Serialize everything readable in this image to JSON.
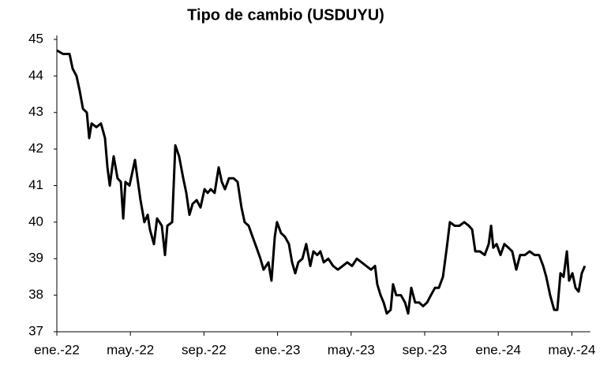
{
  "chart_data": {
    "type": "line",
    "title": "Tipo de cambio (USDUYU)",
    "x": [
      0,
      0.34,
      0.69,
      0.86,
      1.07,
      1.24,
      1.42,
      1.63,
      1.76,
      1.89,
      2.15,
      2.4,
      2.62,
      2.75,
      2.88,
      3.09,
      3.3,
      3.48,
      3.61,
      3.73,
      3.95,
      4.25,
      4.38,
      4.55,
      4.76,
      4.94,
      5.06,
      5.28,
      5.45,
      5.71,
      5.88,
      6.01,
      6.27,
      6.44,
      6.65,
      6.87,
      7.04,
      7.21,
      7.38,
      7.6,
      7.81,
      8.03,
      8.2,
      8.37,
      8.58,
      8.8,
      8.97,
      9.14,
      9.36,
      9.61,
      9.83,
      10.04,
      10.21,
      10.43,
      10.64,
      10.86,
      11.07,
      11.24,
      11.5,
      11.67,
      11.85,
      11.97,
      12.19,
      12.4,
      12.62,
      12.79,
      12.96,
      13.13,
      13.35,
      13.56,
      13.78,
      13.95,
      14.16,
      14.33,
      14.51,
      14.76,
      15.02,
      15.28,
      15.54,
      15.79,
      16.05,
      16.31,
      16.57,
      16.82,
      17.08,
      17.3,
      17.42,
      17.6,
      17.77,
      17.94,
      18.15,
      18.28,
      18.45,
      18.71,
      18.93,
      19.1,
      19.27,
      19.48,
      19.7,
      19.91,
      20.13,
      20.34,
      20.56,
      20.77,
      20.99,
      21.2,
      21.37,
      21.63,
      21.89,
      22.15,
      22.4,
      22.58,
      22.75,
      23,
      23.26,
      23.48,
      23.61,
      23.73,
      23.91,
      24.12,
      24.33,
      24.55,
      24.76,
      24.98,
      25.19,
      25.45,
      25.71,
      25.97,
      26.22,
      26.44,
      26.61,
      26.82,
      27.04,
      27.21,
      27.38,
      27.55,
      27.73,
      27.85,
      28.03,
      28.2,
      28.37,
      28.54,
      28.71
    ],
    "values": [
      44.7,
      44.6,
      44.6,
      44.2,
      44.0,
      43.6,
      43.1,
      43.0,
      42.3,
      42.7,
      42.6,
      42.7,
      42.3,
      41.5,
      41.0,
      41.8,
      41.2,
      41.1,
      40.1,
      41.1,
      41.0,
      41.7,
      41.2,
      40.6,
      40.0,
      40.2,
      39.8,
      39.4,
      40.1,
      39.9,
      39.1,
      39.9,
      40.0,
      42.1,
      41.8,
      41.2,
      40.8,
      40.2,
      40.5,
      40.6,
      40.4,
      40.9,
      40.8,
      40.9,
      40.8,
      41.5,
      41.1,
      40.9,
      41.2,
      41.2,
      41.1,
      40.4,
      40.0,
      39.9,
      39.6,
      39.3,
      39.0,
      38.7,
      38.9,
      38.4,
      39.6,
      40.0,
      39.7,
      39.6,
      39.4,
      38.9,
      38.6,
      38.9,
      39.0,
      39.4,
      38.8,
      39.2,
      39.1,
      39.2,
      38.9,
      39.0,
      38.8,
      38.7,
      38.8,
      38.9,
      38.8,
      39.0,
      38.9,
      38.8,
      38.7,
      38.8,
      38.3,
      38.0,
      37.8,
      37.5,
      37.6,
      38.3,
      38.0,
      38.0,
      37.8,
      37.5,
      38.2,
      37.8,
      37.8,
      37.7,
      37.8,
      38.0,
      38.2,
      38.2,
      38.5,
      39.3,
      40.0,
      39.9,
      39.9,
      40.0,
      39.9,
      39.8,
      39.2,
      39.2,
      39.1,
      39.4,
      39.9,
      39.3,
      39.4,
      39.1,
      39.4,
      39.3,
      39.2,
      38.7,
      39.1,
      39.1,
      39.2,
      39.1,
      39.1,
      38.8,
      38.5,
      38.0,
      37.6,
      37.6,
      38.6,
      38.5,
      39.2,
      38.4,
      38.6,
      38.2,
      38.1,
      38.6,
      38.8
    ],
    "color": "#000000",
    "xlim": [
      0,
      29
    ],
    "xticks": [
      {
        "value": 0,
        "label": "ene.-22"
      },
      {
        "value": 4,
        "label": "may.-22"
      },
      {
        "value": 8,
        "label": "sep.-22"
      },
      {
        "value": 12,
        "label": "ene.-23"
      },
      {
        "value": 16,
        "label": "may.-23"
      },
      {
        "value": 20,
        "label": "sep.-23"
      },
      {
        "value": 24,
        "label": "ene.-24"
      },
      {
        "value": 28,
        "label": "may.-24"
      }
    ],
    "ylim": [
      37,
      45
    ],
    "yticks": [
      37,
      38,
      39,
      40,
      41,
      42,
      43,
      44,
      45
    ]
  }
}
